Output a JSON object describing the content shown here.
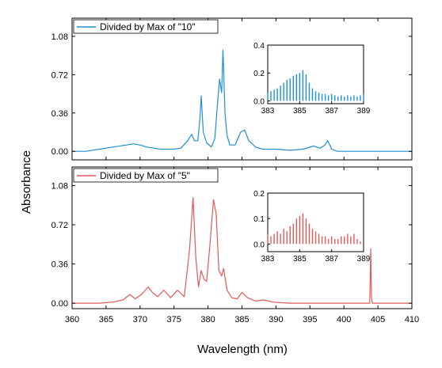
{
  "chart_data": {
    "type": "line",
    "xlabel": "Wavelength (nm)",
    "ylabel": "Absorbance",
    "xlim": [
      360,
      410
    ],
    "x_ticks": [
      360,
      365,
      370,
      375,
      380,
      385,
      390,
      395,
      400,
      405,
      410
    ],
    "x_tick_labels": [
      "360",
      "365",
      "370",
      "375",
      "380",
      "385",
      "390",
      "395",
      "400",
      "405",
      "410"
    ],
    "panels": [
      {
        "legend": "Divided by Max of \"10\"",
        "legend_position": "top-left",
        "color": "#1f8fd6",
        "ylim": [
          -0.08,
          1.25
        ],
        "y_ticks": [
          0.0,
          0.36,
          0.72,
          1.08
        ],
        "y_tick_labels": [
          "0.00",
          "0.36",
          "0.72",
          "1.08"
        ],
        "series": {
          "name": "Divided by Max of \"10\"",
          "x": [
            360,
            362,
            364,
            366,
            368,
            369,
            370,
            371,
            372,
            373,
            374,
            375,
            376,
            377,
            377.6,
            378,
            378.5,
            378.8,
            379.0,
            379.3,
            379.8,
            380.5,
            381.0,
            381.4,
            381.7,
            382.0,
            382.2,
            382.5,
            382.8,
            383.2,
            384,
            384.8,
            385.4,
            386,
            387,
            388,
            390,
            392,
            394,
            395.5,
            396.5,
            397.2,
            397.6,
            398.2,
            399,
            402,
            405,
            408,
            410
          ],
          "values": [
            0.0,
            0.0,
            0.02,
            0.04,
            0.06,
            0.07,
            0.06,
            0.04,
            0.03,
            0.02,
            0.02,
            0.02,
            0.03,
            0.1,
            0.16,
            0.1,
            0.1,
            0.3,
            0.52,
            0.18,
            0.08,
            0.04,
            0.12,
            0.45,
            0.68,
            0.55,
            0.95,
            0.35,
            0.15,
            0.06,
            0.06,
            0.18,
            0.2,
            0.1,
            0.04,
            0.02,
            0.02,
            0.01,
            0.02,
            0.05,
            0.03,
            0.06,
            0.1,
            0.02,
            0.0,
            0.0,
            0.0,
            0.0,
            0.0
          ]
        },
        "inset": {
          "xlim": [
            383,
            389
          ],
          "ylim": [
            -0.02,
            0.4
          ],
          "x_ticks": [
            383,
            385,
            387,
            389
          ],
          "x_tick_labels": [
            "383",
            "385",
            "387",
            "389"
          ],
          "y_ticks": [
            0.0,
            0.2,
            0.4
          ],
          "y_tick_labels": [
            "0.0",
            "0.2",
            "0.4"
          ],
          "x": [
            383.0,
            383.2,
            383.4,
            383.6,
            383.8,
            384.0,
            384.2,
            384.4,
            384.6,
            384.8,
            385.0,
            385.2,
            385.4,
            385.6,
            385.8,
            386.0,
            386.2,
            386.4,
            386.6,
            386.8,
            387.0,
            387.2,
            387.4,
            387.6,
            387.8,
            388.0,
            388.2,
            388.4,
            388.6,
            388.8,
            389.0
          ],
          "values": [
            0.06,
            0.07,
            0.08,
            0.09,
            0.11,
            0.13,
            0.15,
            0.16,
            0.18,
            0.19,
            0.2,
            0.22,
            0.19,
            0.13,
            0.09,
            0.07,
            0.06,
            0.05,
            0.05,
            0.04,
            0.05,
            0.04,
            0.03,
            0.04,
            0.03,
            0.04,
            0.03,
            0.04,
            0.03,
            0.04,
            0.05
          ]
        }
      },
      {
        "legend": "Divided by Max of \"5\"",
        "legend_position": "top-left",
        "color": "#e05a5a",
        "ylim": [
          -0.05,
          1.25
        ],
        "y_ticks": [
          0.0,
          0.36,
          0.72,
          1.08
        ],
        "y_tick_labels": [
          "0.00",
          "0.36",
          "0.72",
          "1.08"
        ],
        "series": {
          "name": "Divided by Max of \"5\"",
          "x": [
            360,
            364,
            366,
            367.5,
            368.5,
            369.3,
            370.2,
            371.2,
            371.8,
            372.6,
            373.5,
            374.5,
            375.5,
            376.5,
            377.3,
            377.8,
            378.2,
            378.6,
            379.0,
            379.4,
            379.8,
            380.3,
            380.8,
            381.2,
            381.6,
            382.0,
            382.3,
            382.8,
            383.5,
            384.3,
            385.0,
            385.8,
            387,
            388.2,
            389.5,
            392,
            396,
            400,
            403.8,
            403.95,
            404.05,
            404.2,
            406,
            410
          ],
          "values": [
            0.0,
            0.0,
            0.01,
            0.03,
            0.08,
            0.04,
            0.08,
            0.15,
            0.1,
            0.06,
            0.12,
            0.05,
            0.12,
            0.06,
            0.5,
            0.97,
            0.42,
            0.15,
            0.3,
            0.22,
            0.2,
            0.55,
            0.95,
            0.82,
            0.3,
            0.25,
            0.32,
            0.12,
            0.05,
            0.04,
            0.1,
            0.05,
            0.02,
            0.03,
            0.01,
            0.0,
            0.0,
            0.0,
            0.0,
            0.5,
            0.05,
            0.0,
            0.0,
            0.0
          ]
        },
        "inset": {
          "xlim": [
            383,
            389
          ],
          "ylim": [
            -0.03,
            0.2
          ],
          "x_ticks": [
            383,
            385,
            387,
            389
          ],
          "x_tick_labels": [
            "383",
            "385",
            "387",
            "389"
          ],
          "y_ticks": [
            0.0,
            0.1,
            0.2
          ],
          "y_tick_labels": [
            "0.0",
            "0.1",
            "0.2"
          ],
          "x": [
            383.0,
            383.2,
            383.4,
            383.6,
            383.8,
            384.0,
            384.2,
            384.4,
            384.6,
            384.8,
            385.0,
            385.2,
            385.4,
            385.6,
            385.8,
            386.0,
            386.2,
            386.4,
            386.6,
            386.8,
            387.0,
            387.2,
            387.4,
            387.6,
            387.8,
            388.0,
            388.2,
            388.4,
            388.6,
            388.8,
            389.0
          ],
          "values": [
            0.04,
            0.03,
            0.04,
            0.05,
            0.04,
            0.06,
            0.05,
            0.07,
            0.08,
            0.1,
            0.11,
            0.12,
            0.1,
            0.08,
            0.06,
            0.05,
            0.04,
            0.03,
            0.03,
            0.02,
            0.03,
            0.02,
            0.02,
            0.03,
            0.03,
            0.04,
            0.03,
            0.04,
            0.02,
            0.01,
            0.0
          ]
        }
      }
    ]
  }
}
